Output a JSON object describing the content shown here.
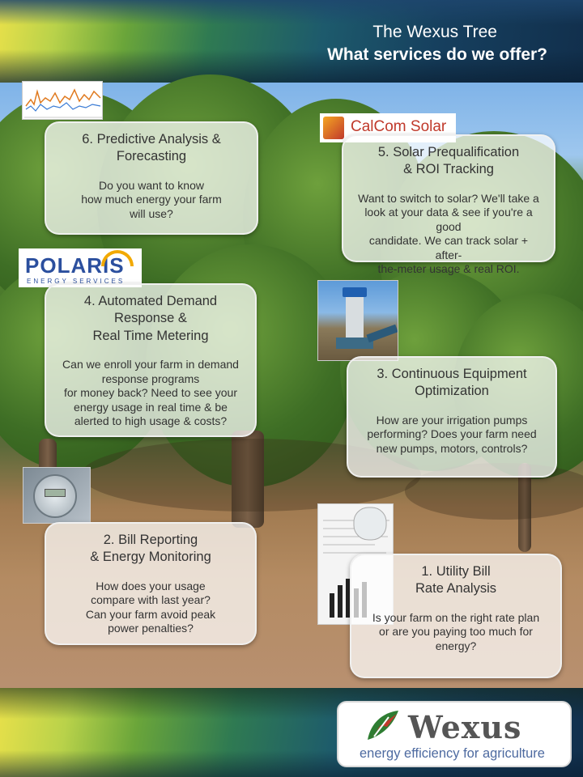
{
  "header": {
    "title": "The Wexus Tree",
    "subtitle": "What services do we offer?"
  },
  "cards": [
    {
      "title": "6. Predictive Analysis &\nForecasting",
      "body": "Do you want to know\nhow much energy your farm\nwill use?"
    },
    {
      "title": "5. Solar Prequalification\n& ROI Tracking",
      "body": "Want to switch to solar? We'll take a\nlook at your data & see if you're a good\ncandidate. We can track solar + after-\nthe-meter usage & real ROI."
    },
    {
      "title": "4. Automated Demand\nResponse &\nReal Time Metering",
      "body": "Can we enroll your farm in demand\nresponse programs\nfor money back? Need to see your\nenergy usage in real time & be\nalerted to high usage & costs?"
    },
    {
      "title": "3. Continuous Equipment\nOptimization",
      "body": "How are your irrigation pumps\nperforming? Does your farm need\nnew pumps, motors, controls?"
    },
    {
      "title": "2. Bill Reporting\n& Energy Monitoring",
      "body": "How does your usage\ncompare with last year?\nCan your farm avoid peak\npower penalties?"
    },
    {
      "title": "1. Utility Bill\nRate Analysis",
      "body": "Is your farm on the right rate plan\nor are you paying too much for\nenergy?"
    }
  ],
  "partner_logos": {
    "calcom": "CalCom Solar",
    "polaris": "POLARIS",
    "polaris_sub": "ENERGY SERVICES"
  },
  "brand": {
    "name": "Wexus",
    "tagline": "energy efficiency for agriculture",
    "accent": "#c0392b",
    "green": "#2e7d32"
  }
}
